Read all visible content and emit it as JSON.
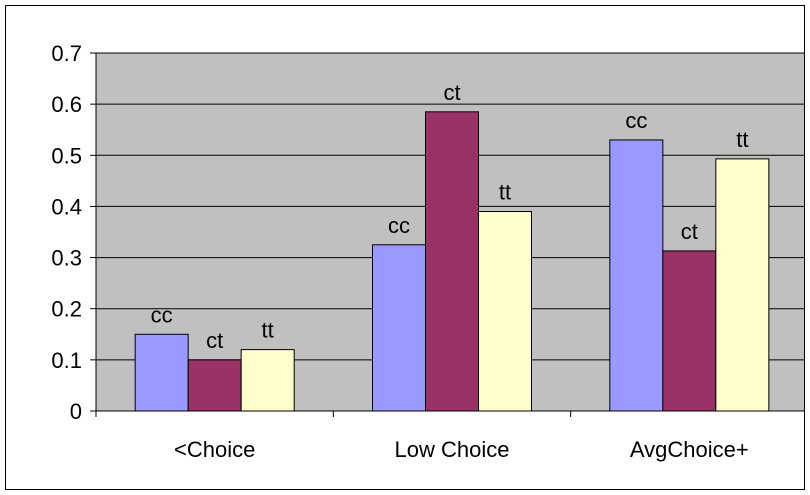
{
  "chart_data": {
    "type": "bar",
    "title": "",
    "xlabel": "",
    "ylabel": "",
    "categories": [
      "<Choice",
      "Low Choice",
      "AvgChoice+"
    ],
    "series": [
      {
        "label": "cc",
        "color": "#9999ff",
        "values": [
          0.15,
          0.325,
          0.53
        ]
      },
      {
        "label": "ct",
        "color": "#993366",
        "values": [
          0.1,
          0.585,
          0.313
        ]
      },
      {
        "label": "tt",
        "color": "#ffffcc",
        "values": [
          0.12,
          0.39,
          0.493
        ]
      }
    ],
    "ylim": [
      0,
      0.7
    ],
    "yticks": [
      "0",
      "0.1",
      "0.2",
      "0.3",
      "0.4",
      "0.5",
      "0.6",
      "0.7"
    ],
    "grid": true,
    "legend": "none",
    "plot_background": "#c0c0c0"
  }
}
